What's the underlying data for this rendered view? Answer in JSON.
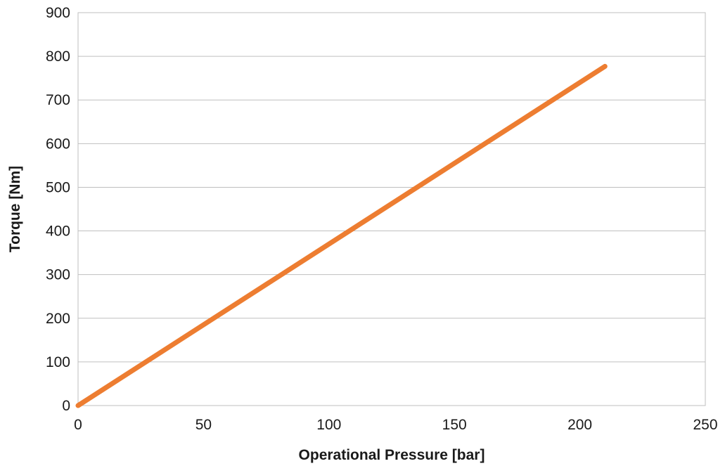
{
  "chart_data": {
    "type": "line",
    "title": "",
    "xlabel": "Operational Pressure [bar]",
    "ylabel": "Torque [Nm]",
    "xlim": [
      0,
      250
    ],
    "ylim": [
      0,
      900
    ],
    "x_ticks": [
      0,
      50,
      100,
      150,
      200,
      250
    ],
    "y_ticks": [
      0,
      100,
      200,
      300,
      400,
      500,
      600,
      700,
      800,
      900
    ],
    "grid": "horizontal",
    "legend": "none",
    "series": [
      {
        "color": "#ED7D31",
        "x": [
          0,
          210
        ],
        "y": [
          0,
          777
        ]
      }
    ]
  }
}
